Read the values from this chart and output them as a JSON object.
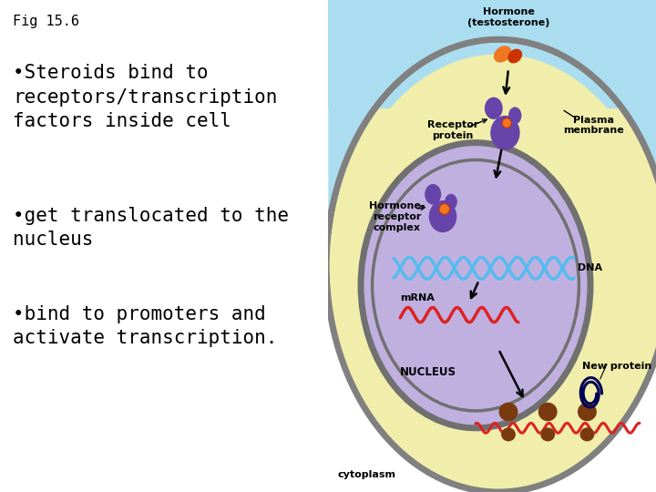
{
  "fig_label": "Fig 15.6",
  "bullet1": "•Steroids bind to\nreceptors/transcription\nfactors inside cell",
  "bullet2": "•get translocated to the\nnucleus",
  "bullet3": "•bind to promoters and\nactivate transcription.",
  "bg_color": "#ffffff",
  "text_color": "#000000",
  "cytoplasm_color": "#f0eeaa",
  "extracell_color": "#aaddf0",
  "nucleus_color": "#c0b0e0",
  "nucleus_border_color": "#707070",
  "cell_border_color": "#808080",
  "hormone_color1": "#cc3300",
  "hormone_color2": "#ee7722",
  "receptor_color": "#6644aa",
  "dna_color1": "#55bbee",
  "dna_color2": "#3388bb",
  "mrna_color": "#dd2222",
  "ribosome_color": "#7a3a10",
  "newprot_color": "#000055",
  "label_hormone": "Hormone\n(testosterone)",
  "label_receptor": "Receptor\nprotein",
  "label_plasma": "Plasma\nmembrane",
  "label_complex": "Hormone-\nreceptor\ncomplex",
  "label_dna": "DNA",
  "label_mrna": "mRNA",
  "label_nucleus": "NUCLEUS",
  "label_newprotein": "New protein",
  "label_cytoplasm": "cytoplasm",
  "font_size_body": 15,
  "font_size_label": 8,
  "font_size_title": 11
}
